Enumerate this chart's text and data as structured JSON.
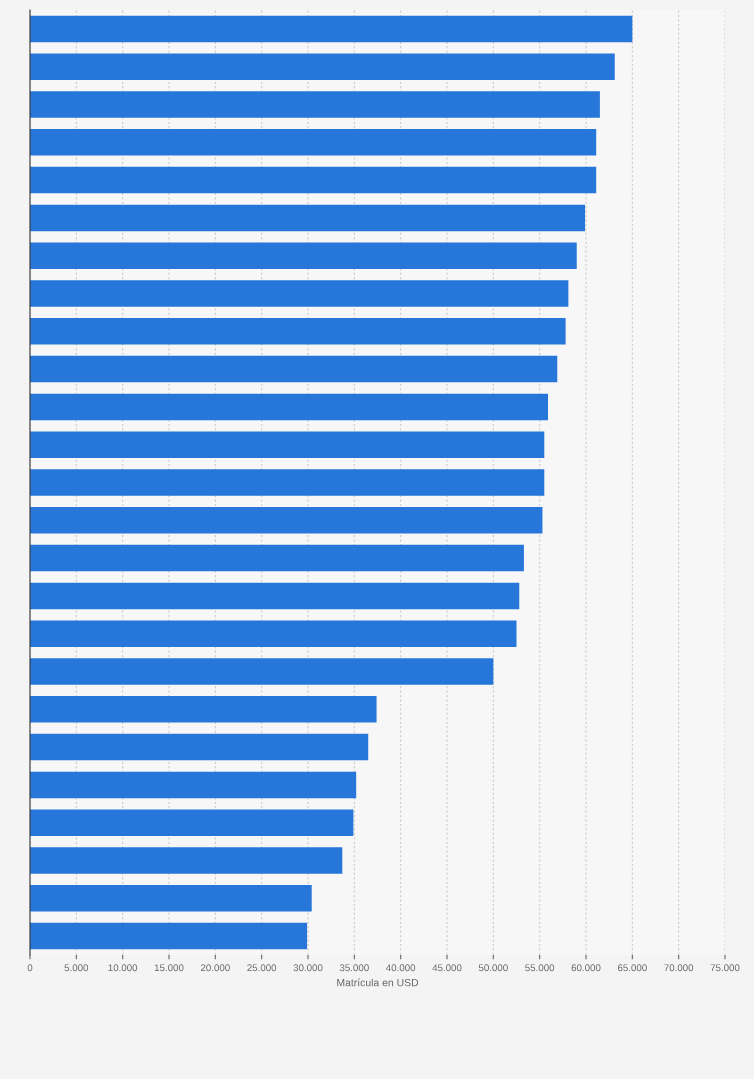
{
  "chart_data": {
    "type": "bar",
    "orientation": "horizontal",
    "xlabel": "Matrícula en USD",
    "categories": [
      null,
      null,
      null,
      null,
      null,
      null,
      null,
      null,
      null,
      null,
      null,
      null,
      null,
      null,
      null,
      null,
      null,
      null,
      null,
      null,
      null,
      null,
      null,
      null,
      null
    ],
    "values": [
      65000,
      63100,
      61500,
      61100,
      61100,
      59900,
      59000,
      58100,
      57800,
      56900,
      55900,
      55500,
      55500,
      55300,
      53300,
      52800,
      52500,
      50000,
      37400,
      36500,
      35200,
      34900,
      33700,
      30400,
      29900
    ],
    "color": "#2776d9",
    "xlim": [
      0,
      75000
    ],
    "xticks": [
      {
        "value": 0,
        "label": "0"
      },
      {
        "value": 5000,
        "label": "5.000"
      },
      {
        "value": 10000,
        "label": "10.000"
      },
      {
        "value": 15000,
        "label": "15.000"
      },
      {
        "value": 20000,
        "label": "20.000"
      },
      {
        "value": 25000,
        "label": "25.000"
      },
      {
        "value": 30000,
        "label": "30.000"
      },
      {
        "value": 35000,
        "label": "35.000"
      },
      {
        "value": 40000,
        "label": "40.000"
      },
      {
        "value": 45000,
        "label": "45.000"
      },
      {
        "value": 50000,
        "label": "50.000"
      },
      {
        "value": 55000,
        "label": "55.000"
      },
      {
        "value": 60000,
        "label": "60.000"
      },
      {
        "value": 65000,
        "label": "65.000"
      },
      {
        "value": 70000,
        "label": "70.000"
      },
      {
        "value": 75000,
        "label": "75.000"
      }
    ],
    "grid": "x",
    "legend": false
  }
}
